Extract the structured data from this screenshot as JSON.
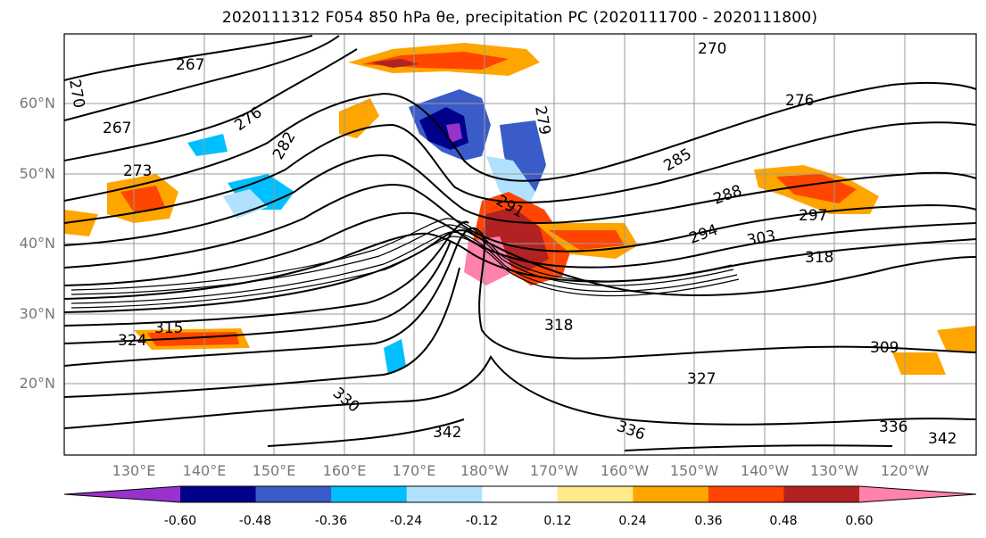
{
  "title": "2020111312 F054 850 hPa θe, precipitation PC (2020111700 - 2020111800)",
  "map": {
    "lat_labels": [
      "60°N",
      "50°N",
      "40°N",
      "30°N",
      "20°N"
    ],
    "lon_labels": [
      "130°E",
      "140°E",
      "150°E",
      "160°E",
      "170°E",
      "180°W",
      "170°W",
      "160°W",
      "150°W",
      "140°W",
      "130°W",
      "120°W"
    ],
    "contour_labels": [
      "270",
      "267",
      "276",
      "282",
      "285",
      "288",
      "291",
      "294",
      "297",
      "303",
      "318",
      "315",
      "324",
      "309",
      "327",
      "330",
      "336",
      "342",
      "273",
      "279",
      "276"
    ],
    "contour_color": "#000000",
    "grid_color": "#9a9a9a"
  },
  "colorbar": {
    "tick_labels": [
      "-0.60",
      "-0.48",
      "-0.36",
      "-0.24",
      "-0.12",
      "0.12",
      "0.24",
      "0.36",
      "0.48",
      "0.60"
    ],
    "colors": [
      "#9932cc",
      "#00008b",
      "#3a5cc9",
      "#00bfff",
      "#b0e2ff",
      "#ffffff",
      "#ffe98a",
      "#ffa500",
      "#ff4500",
      "#b22222",
      "#ff82ab"
    ]
  }
}
